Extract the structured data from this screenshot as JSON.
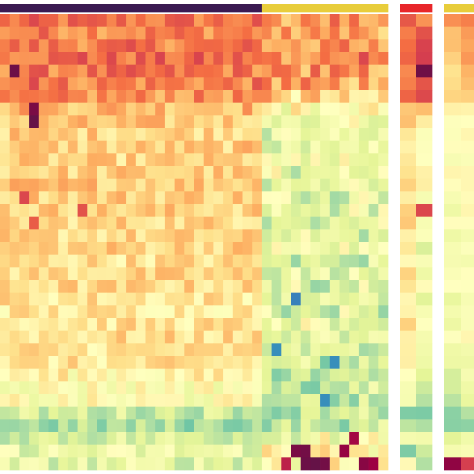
{
  "chart_data": [
    {
      "type": "heatmap",
      "panel": "main",
      "rows": 36,
      "columns": 40,
      "top_annotation": {
        "groups": [
          {
            "columns": 27,
            "color": "#3b1a52"
          },
          {
            "columns": 13,
            "color": "#e8cd3b"
          }
        ]
      },
      "row_profile": [
        0.72,
        0.7,
        0.71,
        0.73,
        0.71,
        0.7,
        0.67,
        0.62,
        0.58,
        0.57,
        0.57,
        0.56,
        0.57,
        0.59,
        0.58,
        0.57,
        0.56,
        0.55,
        0.57,
        0.54,
        0.55,
        0.55,
        0.53,
        0.52,
        0.53,
        0.54,
        0.53,
        0.52,
        0.49,
        0.46,
        0.45,
        0.33,
        0.27,
        0.35,
        0.39,
        0.37
      ],
      "group_offset": {
        "columns": 27,
        "values": [
          -0.06,
          -0.06,
          -0.05,
          -0.05,
          -0.05,
          -0.05,
          -0.09,
          -0.16,
          -0.18,
          -0.17,
          -0.17,
          -0.17,
          -0.18,
          -0.19,
          -0.18,
          -0.19,
          -0.19,
          -0.17,
          -0.16,
          -0.18,
          -0.18,
          -0.18,
          -0.17,
          -0.16,
          -0.16,
          -0.17,
          -0.17,
          -0.18,
          -0.17,
          -0.15,
          -0.14,
          -0.04,
          0.03,
          0.06,
          0.1,
          0.12
        ]
      },
      "outlier_cells": [
        [
          4,
          1,
          0.98
        ],
        [
          5,
          3,
          0.8
        ],
        [
          6,
          2,
          0.72
        ],
        [
          7,
          3,
          0.96
        ],
        [
          8,
          3,
          0.99
        ],
        [
          3,
          8,
          0.8
        ],
        [
          14,
          2,
          0.8
        ],
        [
          16,
          3,
          0.76
        ],
        [
          15,
          8,
          0.78
        ],
        [
          22,
          30,
          0.08
        ],
        [
          26,
          28,
          0.1
        ],
        [
          27,
          34,
          0.1
        ],
        [
          30,
          33,
          0.1
        ],
        [
          34,
          30,
          0.96
        ],
        [
          34,
          31,
          0.97
        ],
        [
          35,
          31,
          0.98
        ],
        [
          35,
          32,
          0.99
        ],
        [
          35,
          33,
          0.97
        ],
        [
          34,
          35,
          0.92
        ],
        [
          33,
          36,
          0.9
        ],
        [
          35,
          37,
          0.94
        ],
        [
          35,
          38,
          0.91
        ],
        [
          35,
          29,
          0.86
        ]
      ]
    },
    {
      "type": "heatmap",
      "panel": "side-1",
      "rows": 36,
      "columns": 2,
      "top_annotation": {
        "color": "#e8262a"
      },
      "values": [
        [
          0.74,
          0.69
        ],
        [
          0.7,
          0.8
        ],
        [
          0.73,
          0.78
        ],
        [
          0.72,
          0.81
        ],
        [
          0.7,
          0.99
        ],
        [
          0.72,
          0.78
        ],
        [
          0.74,
          0.77
        ],
        [
          0.62,
          0.6
        ],
        [
          0.58,
          0.5
        ],
        [
          0.55,
          0.46
        ],
        [
          0.52,
          0.45
        ],
        [
          0.5,
          0.44
        ],
        [
          0.56,
          0.48
        ],
        [
          0.58,
          0.5
        ],
        [
          0.52,
          0.4
        ],
        [
          0.6,
          0.78
        ],
        [
          0.56,
          0.45
        ],
        [
          0.52,
          0.42
        ],
        [
          0.54,
          0.36
        ],
        [
          0.5,
          0.42
        ],
        [
          0.56,
          0.4
        ],
        [
          0.54,
          0.46
        ],
        [
          0.5,
          0.36
        ],
        [
          0.48,
          0.43
        ],
        [
          0.55,
          0.44
        ],
        [
          0.52,
          0.4
        ],
        [
          0.48,
          0.38
        ],
        [
          0.53,
          0.42
        ],
        [
          0.46,
          0.35
        ],
        [
          0.42,
          0.3
        ],
        [
          0.4,
          0.28
        ],
        [
          0.22,
          0.2
        ],
        [
          0.3,
          0.28
        ],
        [
          0.4,
          0.42
        ],
        [
          0.2,
          0.32
        ],
        [
          0.46,
          0.3
        ]
      ]
    },
    {
      "type": "heatmap",
      "panel": "side-2",
      "rows": 36,
      "columns": 2,
      "top_annotation": {
        "color": "#e8cd3b"
      },
      "values": [
        [
          0.66,
          0.68
        ],
        [
          0.62,
          0.66
        ],
        [
          0.6,
          0.64
        ],
        [
          0.58,
          0.66
        ],
        [
          0.56,
          0.62
        ],
        [
          0.58,
          0.6
        ],
        [
          0.55,
          0.58
        ],
        [
          0.48,
          0.5
        ],
        [
          0.46,
          0.48
        ],
        [
          0.44,
          0.5
        ],
        [
          0.46,
          0.48
        ],
        [
          0.44,
          0.46
        ],
        [
          0.46,
          0.5
        ],
        [
          0.48,
          0.5
        ],
        [
          0.44,
          0.46
        ],
        [
          0.42,
          0.48
        ],
        [
          0.44,
          0.46
        ],
        [
          0.42,
          0.44
        ],
        [
          0.44,
          0.46
        ],
        [
          0.4,
          0.44
        ],
        [
          0.42,
          0.46
        ],
        [
          0.44,
          0.48
        ],
        [
          0.4,
          0.42
        ],
        [
          0.42,
          0.44
        ],
        [
          0.4,
          0.42
        ],
        [
          0.42,
          0.46
        ],
        [
          0.4,
          0.42
        ],
        [
          0.38,
          0.42
        ],
        [
          0.36,
          0.4
        ],
        [
          0.34,
          0.38
        ],
        [
          0.32,
          0.36
        ],
        [
          0.24,
          0.3
        ],
        [
          0.2,
          0.26
        ],
        [
          0.34,
          0.4
        ],
        [
          0.4,
          0.46
        ],
        [
          0.9,
          0.8
        ]
      ]
    }
  ],
  "colors": {
    "palette": [
      "#5e1448",
      "#9e0142",
      "#d53e4f",
      "#f46d43",
      "#fdae61",
      "#fee08b",
      "#ffffbf",
      "#e6f598",
      "#abdda4",
      "#66c2a5",
      "#3288bd",
      "#5e4fa2"
    ],
    "background": "#ffffff"
  }
}
